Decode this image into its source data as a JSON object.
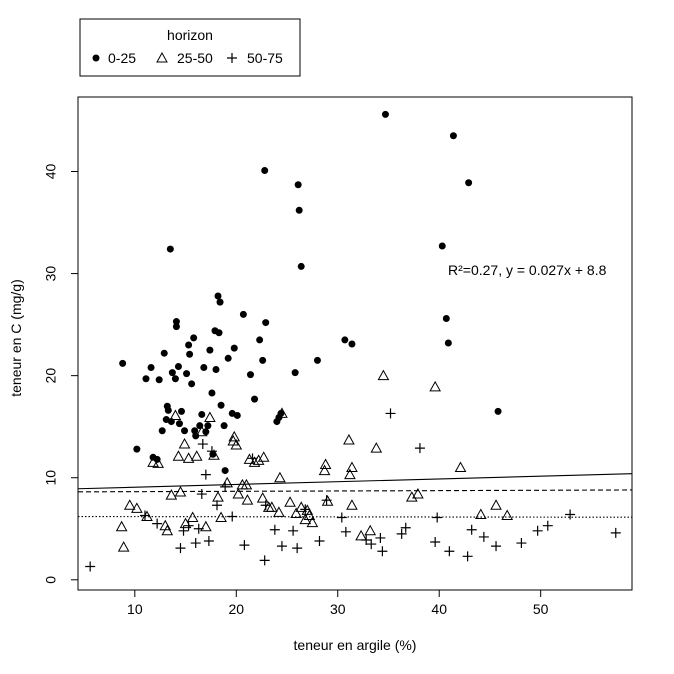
{
  "chart_data": {
    "type": "scatter",
    "title": "",
    "xlabel": "teneur en argile (%)",
    "ylabel": "teneur en C (mg/g)",
    "xlim": [
      4.4,
      59.0
    ],
    "ylim": [
      -1.0,
      47.3
    ],
    "x_ticks": [
      10,
      20,
      30,
      40,
      50
    ],
    "y_ticks": [
      0,
      10,
      20,
      30,
      40
    ],
    "grid": false,
    "legend": {
      "title": "horizon",
      "position": "top-left-outside"
    },
    "series": [
      {
        "name": "0-25",
        "marker": "filled-circle",
        "points": [
          [
            8.8,
            21.2
          ],
          [
            10.2,
            12.8
          ],
          [
            11.1,
            19.7
          ],
          [
            11.6,
            20.8
          ],
          [
            11.8,
            12.0
          ],
          [
            12.2,
            11.8
          ],
          [
            12.4,
            19.6
          ],
          [
            12.7,
            14.6
          ],
          [
            12.9,
            22.2
          ],
          [
            13.1,
            15.7
          ],
          [
            13.2,
            17.0
          ],
          [
            13.3,
            16.6
          ],
          [
            13.5,
            32.4
          ],
          [
            13.6,
            15.5
          ],
          [
            13.7,
            20.3
          ],
          [
            14.0,
            19.7
          ],
          [
            14.1,
            24.8
          ],
          [
            14.1,
            25.3
          ],
          [
            14.3,
            20.9
          ],
          [
            14.4,
            15.3
          ],
          [
            14.6,
            16.5
          ],
          [
            14.9,
            14.6
          ],
          [
            15.1,
            20.2
          ],
          [
            15.3,
            23.0
          ],
          [
            15.4,
            22.1
          ],
          [
            15.6,
            19.2
          ],
          [
            15.8,
            23.7
          ],
          [
            15.9,
            14.6
          ],
          [
            16.0,
            14.1
          ],
          [
            16.4,
            15.1
          ],
          [
            16.6,
            16.2
          ],
          [
            16.8,
            20.8
          ],
          [
            17.0,
            14.5
          ],
          [
            17.2,
            15.1
          ],
          [
            17.4,
            22.5
          ],
          [
            17.6,
            18.3
          ],
          [
            17.7,
            12.3
          ],
          [
            17.9,
            24.4
          ],
          [
            18.0,
            20.6
          ],
          [
            18.2,
            27.8
          ],
          [
            18.3,
            24.2
          ],
          [
            18.4,
            27.2
          ],
          [
            18.5,
            17.1
          ],
          [
            18.8,
            15.1
          ],
          [
            18.9,
            10.7
          ],
          [
            19.2,
            21.7
          ],
          [
            19.6,
            16.3
          ],
          [
            19.8,
            22.7
          ],
          [
            20.1,
            16.1
          ],
          [
            20.7,
            26.0
          ],
          [
            21.4,
            20.1
          ],
          [
            21.8,
            17.7
          ],
          [
            22.3,
            23.5
          ],
          [
            22.6,
            21.5
          ],
          [
            22.8,
            40.1
          ],
          [
            22.9,
            25.2
          ],
          [
            24.0,
            15.5
          ],
          [
            24.2,
            15.9
          ],
          [
            24.4,
            16.3
          ],
          [
            25.8,
            20.3
          ],
          [
            26.1,
            38.7
          ],
          [
            26.2,
            36.2
          ],
          [
            26.4,
            30.7
          ],
          [
            28.0,
            21.5
          ],
          [
            30.7,
            23.5
          ],
          [
            31.4,
            23.1
          ],
          [
            34.7,
            45.6
          ],
          [
            40.3,
            32.7
          ],
          [
            40.7,
            25.6
          ],
          [
            40.9,
            23.2
          ],
          [
            41.4,
            43.5
          ],
          [
            42.9,
            38.9
          ],
          [
            45.8,
            16.5
          ]
        ]
      },
      {
        "name": "25-50",
        "marker": "open-triangle",
        "points": [
          [
            8.7,
            5.2
          ],
          [
            8.9,
            3.2
          ],
          [
            9.5,
            7.3
          ],
          [
            10.2,
            7.0
          ],
          [
            11.2,
            6.2
          ],
          [
            11.8,
            11.5
          ],
          [
            12.3,
            11.4
          ],
          [
            13.0,
            5.3
          ],
          [
            13.2,
            4.8
          ],
          [
            13.6,
            8.3
          ],
          [
            14.0,
            16.1
          ],
          [
            14.3,
            12.1
          ],
          [
            14.5,
            8.6
          ],
          [
            14.9,
            13.3
          ],
          [
            15.0,
            5.5
          ],
          [
            15.3,
            11.9
          ],
          [
            15.7,
            6.1
          ],
          [
            16.1,
            12.1
          ],
          [
            16.6,
            14.5
          ],
          [
            17.0,
            5.2
          ],
          [
            17.4,
            15.9
          ],
          [
            17.8,
            12.2
          ],
          [
            18.2,
            8.1
          ],
          [
            18.5,
            6.1
          ],
          [
            19.1,
            9.5
          ],
          [
            19.7,
            13.6
          ],
          [
            19.8,
            14.0
          ],
          [
            20.0,
            13.2
          ],
          [
            20.2,
            8.4
          ],
          [
            20.6,
            9.3
          ],
          [
            21.0,
            9.3
          ],
          [
            21.1,
            7.8
          ],
          [
            21.3,
            11.8
          ],
          [
            21.8,
            11.5
          ],
          [
            22.2,
            11.7
          ],
          [
            22.6,
            8.0
          ],
          [
            22.7,
            12.0
          ],
          [
            23.2,
            7.1
          ],
          [
            23.5,
            7.1
          ],
          [
            24.2,
            6.6
          ],
          [
            24.3,
            10.0
          ],
          [
            24.5,
            16.3
          ],
          [
            25.3,
            7.6
          ],
          [
            25.9,
            6.5
          ],
          [
            26.4,
            7.1
          ],
          [
            26.8,
            5.9
          ],
          [
            27.0,
            6.8
          ],
          [
            27.2,
            6.3
          ],
          [
            27.5,
            5.6
          ],
          [
            28.7,
            10.7
          ],
          [
            28.8,
            11.3
          ],
          [
            29.0,
            7.7
          ],
          [
            31.1,
            13.7
          ],
          [
            31.2,
            10.3
          ],
          [
            31.4,
            11.0
          ],
          [
            31.4,
            7.3
          ],
          [
            32.3,
            4.3
          ],
          [
            33.2,
            4.8
          ],
          [
            33.8,
            12.9
          ],
          [
            34.5,
            20.0
          ],
          [
            37.3,
            8.1
          ],
          [
            37.9,
            8.4
          ],
          [
            39.6,
            18.9
          ],
          [
            42.1,
            11.0
          ],
          [
            44.1,
            6.4
          ],
          [
            45.6,
            7.3
          ],
          [
            46.7,
            6.3
          ]
        ]
      },
      {
        "name": "50-75",
        "marker": "plus",
        "points": [
          [
            5.6,
            1.3
          ],
          [
            11.0,
            6.3
          ],
          [
            12.2,
            5.5
          ],
          [
            14.5,
            3.1
          ],
          [
            14.8,
            4.8
          ],
          [
            15.3,
            5.3
          ],
          [
            16.0,
            3.6
          ],
          [
            16.3,
            5.0
          ],
          [
            16.6,
            8.4
          ],
          [
            16.7,
            13.3
          ],
          [
            17.0,
            10.3
          ],
          [
            17.3,
            3.8
          ],
          [
            17.6,
            12.6
          ],
          [
            18.1,
            7.3
          ],
          [
            18.9,
            9.1
          ],
          [
            19.6,
            6.2
          ],
          [
            20.8,
            3.4
          ],
          [
            21.6,
            11.9
          ],
          [
            22.8,
            1.9
          ],
          [
            22.9,
            7.3
          ],
          [
            23.8,
            4.9
          ],
          [
            24.5,
            3.3
          ],
          [
            25.6,
            4.8
          ],
          [
            26.0,
            3.1
          ],
          [
            26.8,
            6.9
          ],
          [
            28.2,
            3.8
          ],
          [
            28.9,
            7.8
          ],
          [
            30.4,
            6.1
          ],
          [
            30.8,
            4.7
          ],
          [
            32.8,
            3.9
          ],
          [
            33.3,
            3.5
          ],
          [
            34.2,
            4.1
          ],
          [
            34.4,
            2.8
          ],
          [
            35.2,
            16.3
          ],
          [
            36.3,
            4.5
          ],
          [
            36.7,
            5.1
          ],
          [
            38.1,
            12.9
          ],
          [
            39.6,
            3.7
          ],
          [
            39.8,
            6.1
          ],
          [
            41.0,
            2.8
          ],
          [
            42.8,
            2.3
          ],
          [
            43.2,
            4.9
          ],
          [
            44.4,
            4.2
          ],
          [
            45.6,
            3.3
          ],
          [
            48.1,
            3.6
          ],
          [
            49.7,
            4.8
          ],
          [
            50.7,
            5.3
          ],
          [
            52.9,
            6.4
          ],
          [
            57.4,
            4.6
          ]
        ]
      }
    ],
    "fit_lines": [
      {
        "series": "0-25",
        "style": "solid",
        "intercept": 8.8,
        "slope": 0.027
      },
      {
        "series": "25-50",
        "style": "dashed",
        "intercept": 8.6,
        "slope": 0.0034
      },
      {
        "series": "50-75",
        "style": "dotted",
        "intercept": 6.2,
        "slope": -0.0012
      }
    ],
    "annotations": [
      {
        "text": "R²=0.27, y = 0.027x + 8.8"
      }
    ]
  }
}
